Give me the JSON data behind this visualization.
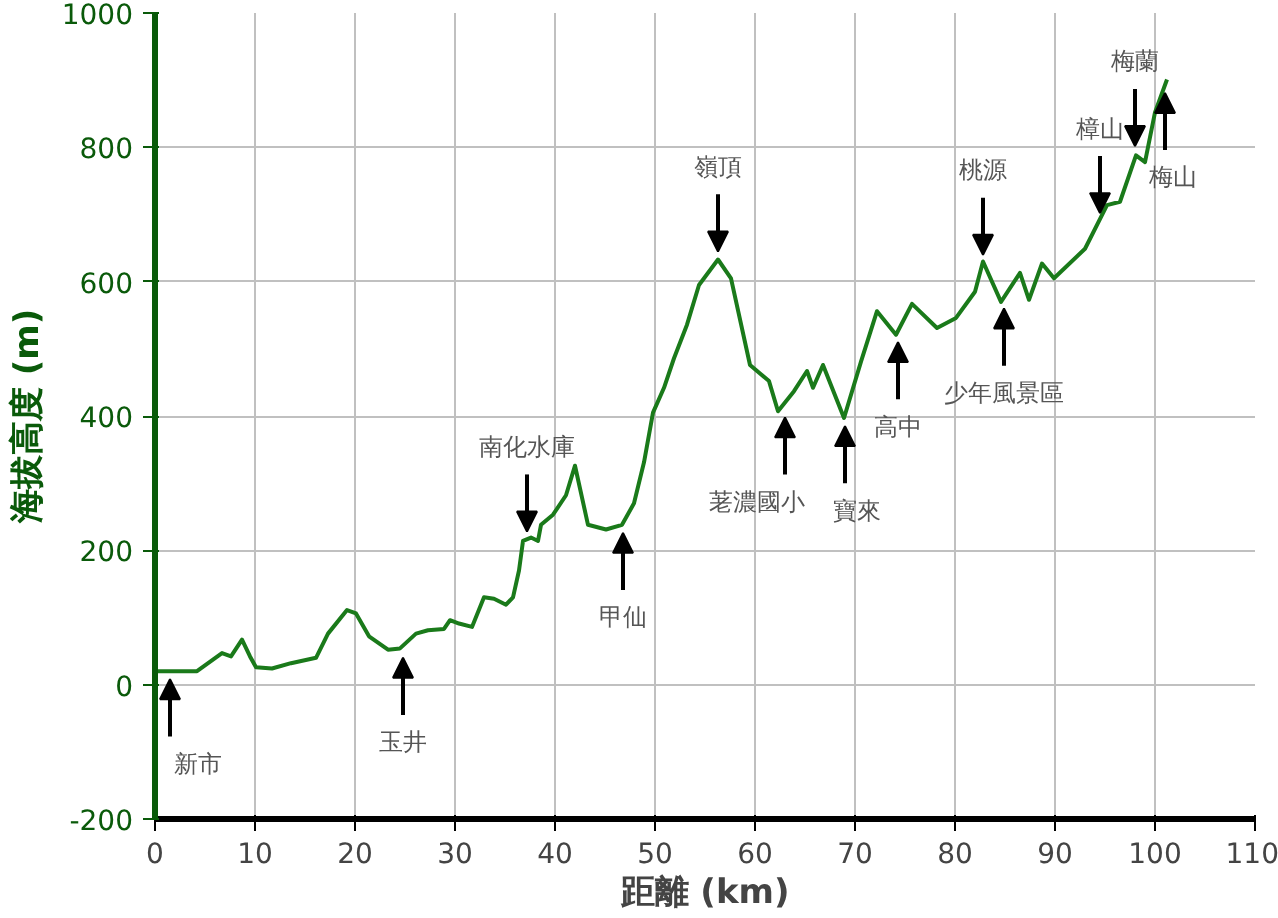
{
  "chart_data": {
    "type": "line",
    "xlabel": "距離 (km)",
    "ylabel": "海拔高度 (m)",
    "x": [
      0,
      4.2,
      6.7,
      7.6,
      8.7,
      9.5,
      10.1,
      11.7,
      13.6,
      16.1,
      17.3,
      19.2,
      20.1,
      21.4,
      23.3,
      24.5,
      26.1,
      27.3,
      28.9,
      29.5,
      30.4,
      31.7,
      32.9,
      33.9,
      35.1,
      35.8,
      36.4,
      36.8,
      37.6,
      38.3,
      38.6,
      39.8,
      41.1,
      42,
      43.3,
      45.1,
      46.7,
      47.9,
      48.9,
      49.8,
      50.9,
      51.9,
      53.2,
      54.4,
      56.3,
      57.6,
      59.5,
      61.4,
      62.3,
      63.9,
      65.2,
      65.8,
      66.8,
      68.9,
      70.6,
      72.2,
      74.1,
      75.7,
      78.2,
      80.1,
      82,
      82.8,
      84.6,
      86.5,
      87.4,
      88.7,
      89.9,
      93,
      95.2,
      96.5,
      98.1,
      99,
      100,
      101.2
    ],
    "series": [
      {
        "color": "#1a7a1a",
        "values": [
          20,
          20,
          47,
          42,
          67,
          42,
          26,
          24,
          32,
          40,
          76,
          111,
          106,
          72,
          52,
          54,
          76,
          81,
          83,
          96,
          91,
          86,
          130,
          128,
          119,
          130,
          170,
          214,
          219,
          214,
          238,
          253,
          282,
          326,
          238,
          231,
          238,
          270,
          331,
          405,
          442,
          486,
          536,
          595,
          633,
          605,
          476,
          452,
          407,
          437,
          467,
          442,
          476,
          397,
          481,
          556,
          521,
          567,
          531,
          546,
          585,
          630,
          570,
          613,
          573,
          627,
          605,
          649,
          714,
          719,
          788,
          778,
          852,
          901
        ]
      }
    ],
    "xlim": [
      0,
      110
    ],
    "ylim": [
      -200,
      1000
    ],
    "xticks": [
      0,
      10,
      20,
      30,
      40,
      50,
      60,
      70,
      80,
      90,
      100,
      110
    ],
    "yticks": [
      -200,
      0,
      200,
      400,
      600,
      800,
      1000
    ],
    "grid": true,
    "annotations": [
      {
        "text": "新市",
        "x": 1.5,
        "y": 20
      },
      {
        "text": "玉井",
        "x": 24.8,
        "y": 52
      },
      {
        "text": "南化水庫",
        "x": 37.2,
        "y": 216
      },
      {
        "text": "甲仙",
        "x": 46.8,
        "y": 238
      },
      {
        "text": "嶺頂",
        "x": 56.3,
        "y": 633
      },
      {
        "text": "荖濃國小",
        "x": 63,
        "y": 410
      },
      {
        "text": "寶來",
        "x": 69,
        "y": 397
      },
      {
        "text": "高中",
        "x": 74.3,
        "y": 522
      },
      {
        "text": "桃源",
        "x": 82.8,
        "y": 628
      },
      {
        "text": "少年風景區",
        "x": 84.9,
        "y": 572
      },
      {
        "text": "樟山",
        "x": 94.5,
        "y": 690
      },
      {
        "text": "梅蘭",
        "x": 98,
        "y": 790
      },
      {
        "text": "梅山",
        "x": 101,
        "y": 893
      }
    ]
  }
}
